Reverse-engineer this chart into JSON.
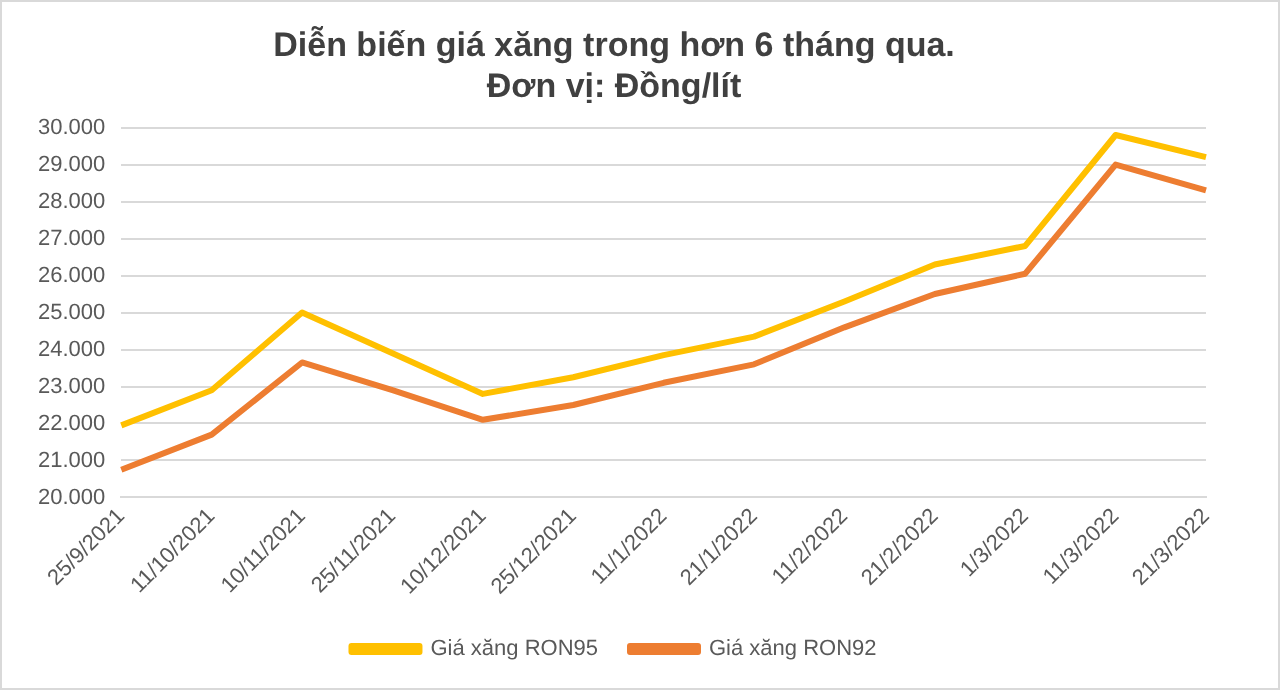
{
  "chart_data": {
    "type": "line",
    "title": "Diễn biến giá xăng trong hơn 6 tháng qua.\nĐơn vị: Đồng/lít",
    "categories": [
      "25/9/2021",
      "11/10/2021",
      "10/11/2021",
      "25/11/2021",
      "10/12/2021",
      "25/12/2021",
      "11/1/2022",
      "21/1/2022",
      "11/2/2022",
      "21/2/2022",
      "1/3/2022",
      "11/3/2022",
      "21/3/2022"
    ],
    "series": [
      {
        "name": "Giá xăng RON95",
        "color": "#ffc000",
        "values": [
          21950,
          22900,
          25000,
          23900,
          22800,
          23250,
          23850,
          24350,
          25300,
          26300,
          26800,
          29800,
          29200
        ]
      },
      {
        "name": "Giá xăng RON92",
        "color": "#ed7d31",
        "values": [
          20750,
          21700,
          23650,
          22900,
          22100,
          22500,
          23100,
          23600,
          24600,
          25500,
          26050,
          29000,
          28300
        ]
      }
    ],
    "ylim": [
      20000,
      30000
    ],
    "yticks": [
      {
        "value": 20000,
        "label": "20.000"
      },
      {
        "value": 21000,
        "label": "21.000"
      },
      {
        "value": 22000,
        "label": "22.000"
      },
      {
        "value": 23000,
        "label": "23.000"
      },
      {
        "value": 24000,
        "label": "24.000"
      },
      {
        "value": 25000,
        "label": "25.000"
      },
      {
        "value": 26000,
        "label": "26.000"
      },
      {
        "value": 27000,
        "label": "27.000"
      },
      {
        "value": 28000,
        "label": "28.000"
      },
      {
        "value": 29000,
        "label": "29.000"
      },
      {
        "value": 30000,
        "label": "30.000"
      }
    ],
    "grid": "y",
    "legend": "bottom",
    "marker": "none",
    "line_style": "solid"
  }
}
